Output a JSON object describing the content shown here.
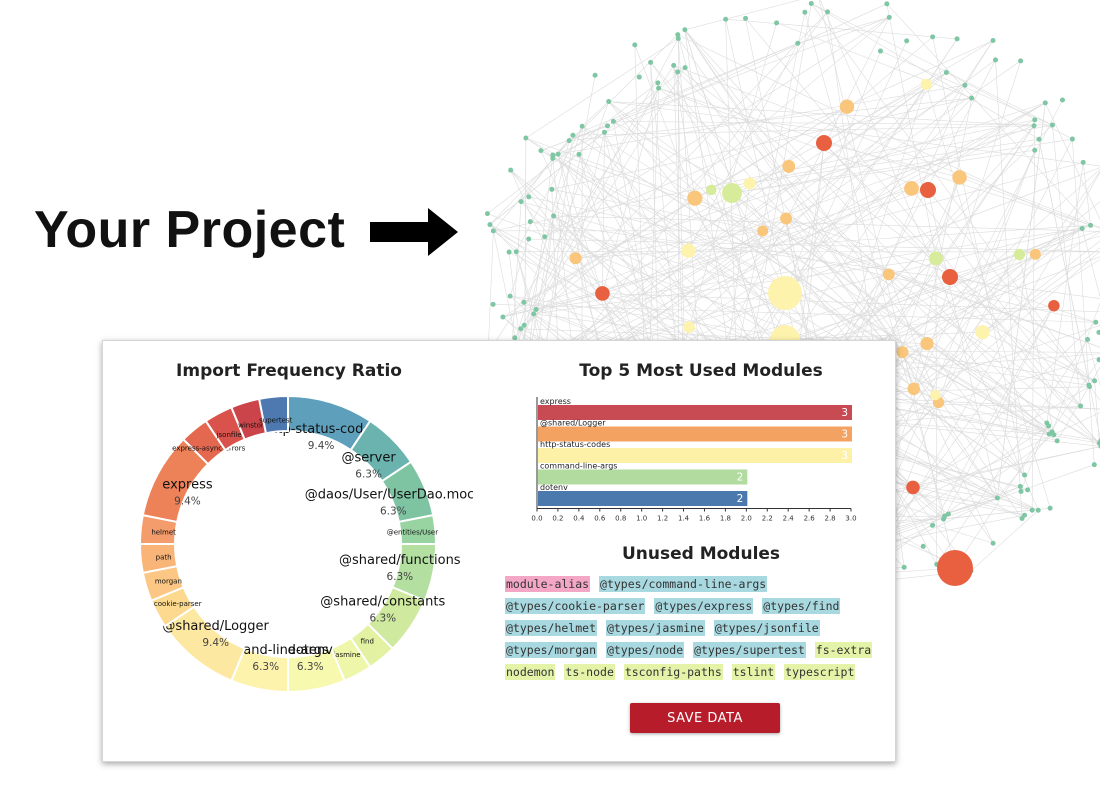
{
  "hero": {
    "title": "Your Project"
  },
  "donut": {
    "title": "Import Frequency Ratio",
    "segments": [
      {
        "label": "http-status-codes",
        "pct": "9.4%",
        "color": "#5e9fbb",
        "weight": 3
      },
      {
        "label": "@server",
        "pct": "6.3%",
        "color": "#6bb3ae",
        "weight": 2
      },
      {
        "label": "@daos/User/UserDao.mock",
        "pct": "6.3%",
        "color": "#7ec4a3",
        "weight": 2
      },
      {
        "label": "@entities/User",
        "pct": "",
        "color": "#98d3a2",
        "weight": 1
      },
      {
        "label": "@shared/functions",
        "pct": "6.3%",
        "color": "#b3dfa0",
        "weight": 2
      },
      {
        "label": "@shared/constants",
        "pct": "6.3%",
        "color": "#cfe99e",
        "weight": 2
      },
      {
        "label": "find",
        "pct": "",
        "color": "#e2f2a2",
        "weight": 1
      },
      {
        "label": "jasmine",
        "pct": "",
        "color": "#eef7a9",
        "weight": 1
      },
      {
        "label": "dotenv",
        "pct": "6.3%",
        "color": "#f6f9ae",
        "weight": 2
      },
      {
        "label": "command-line-args",
        "pct": "6.3%",
        "color": "#fdf3ad",
        "weight": 2
      },
      {
        "label": "@shared/Logger",
        "pct": "9.4%",
        "color": "#fde8a2",
        "weight": 3
      },
      {
        "label": "cookie-parser",
        "pct": "",
        "color": "#fdd98f",
        "weight": 1
      },
      {
        "label": "morgan",
        "pct": "",
        "color": "#fcc784",
        "weight": 1
      },
      {
        "label": "path",
        "pct": "",
        "color": "#f9b478",
        "weight": 1
      },
      {
        "label": "helmet",
        "pct": "",
        "color": "#f49c6c",
        "weight": 1
      },
      {
        "label": "express",
        "pct": "9.4%",
        "color": "#ed8158",
        "weight": 3
      },
      {
        "label": "express-async-errors",
        "pct": "",
        "color": "#e46750",
        "weight": 1
      },
      {
        "label": "jsonfile",
        "pct": "",
        "color": "#d9534c",
        "weight": 1
      },
      {
        "label": "winston",
        "pct": "",
        "color": "#cb4449",
        "weight": 1
      },
      {
        "label": "supertest",
        "pct": "",
        "color": "#4e79b0",
        "weight": 1
      }
    ]
  },
  "bar_chart": {
    "title": "Top 5 Most Used Modules",
    "chart_data": {
      "type": "bar",
      "orientation": "horizontal",
      "categories": [
        "express",
        "@shared/Logger",
        "http-status-codes",
        "command-line-args",
        "dotenv"
      ],
      "values": [
        3,
        3,
        3,
        2,
        2
      ],
      "colors": [
        "#c84a52",
        "#f4a261",
        "#fdf1a8",
        "#b2dba0",
        "#4c79ad"
      ],
      "xlim": [
        0,
        3.0
      ],
      "xticks": [
        "0.0",
        "0.2",
        "0.4",
        "0.6",
        "0.8",
        "1.0",
        "1.2",
        "1.4",
        "1.6",
        "1.8",
        "2.0",
        "2.2",
        "2.4",
        "2.6",
        "2.8",
        "3.0"
      ]
    }
  },
  "unused": {
    "title": "Unused Modules",
    "modules": [
      {
        "name": "module-alias",
        "color": "pink"
      },
      {
        "name": "@types/command-line-args",
        "color": "teal"
      },
      {
        "name": "@types/cookie-parser",
        "color": "teal"
      },
      {
        "name": "@types/express",
        "color": "teal"
      },
      {
        "name": "@types/find",
        "color": "teal"
      },
      {
        "name": "@types/helmet",
        "color": "teal"
      },
      {
        "name": "@types/jasmine",
        "color": "teal"
      },
      {
        "name": "@types/jsonfile",
        "color": "teal"
      },
      {
        "name": "@types/morgan",
        "color": "teal"
      },
      {
        "name": "@types/node",
        "color": "teal"
      },
      {
        "name": "@types/supertest",
        "color": "teal"
      },
      {
        "name": "fs-extra",
        "color": "lime"
      },
      {
        "name": "nodemon",
        "color": "lime"
      },
      {
        "name": "ts-node",
        "color": "lime"
      },
      {
        "name": "tsconfig-paths",
        "color": "lime"
      },
      {
        "name": "tslint",
        "color": "lime"
      },
      {
        "name": "typescript",
        "color": "lime"
      }
    ]
  },
  "actions": {
    "save_label": "SAVE DATA"
  }
}
